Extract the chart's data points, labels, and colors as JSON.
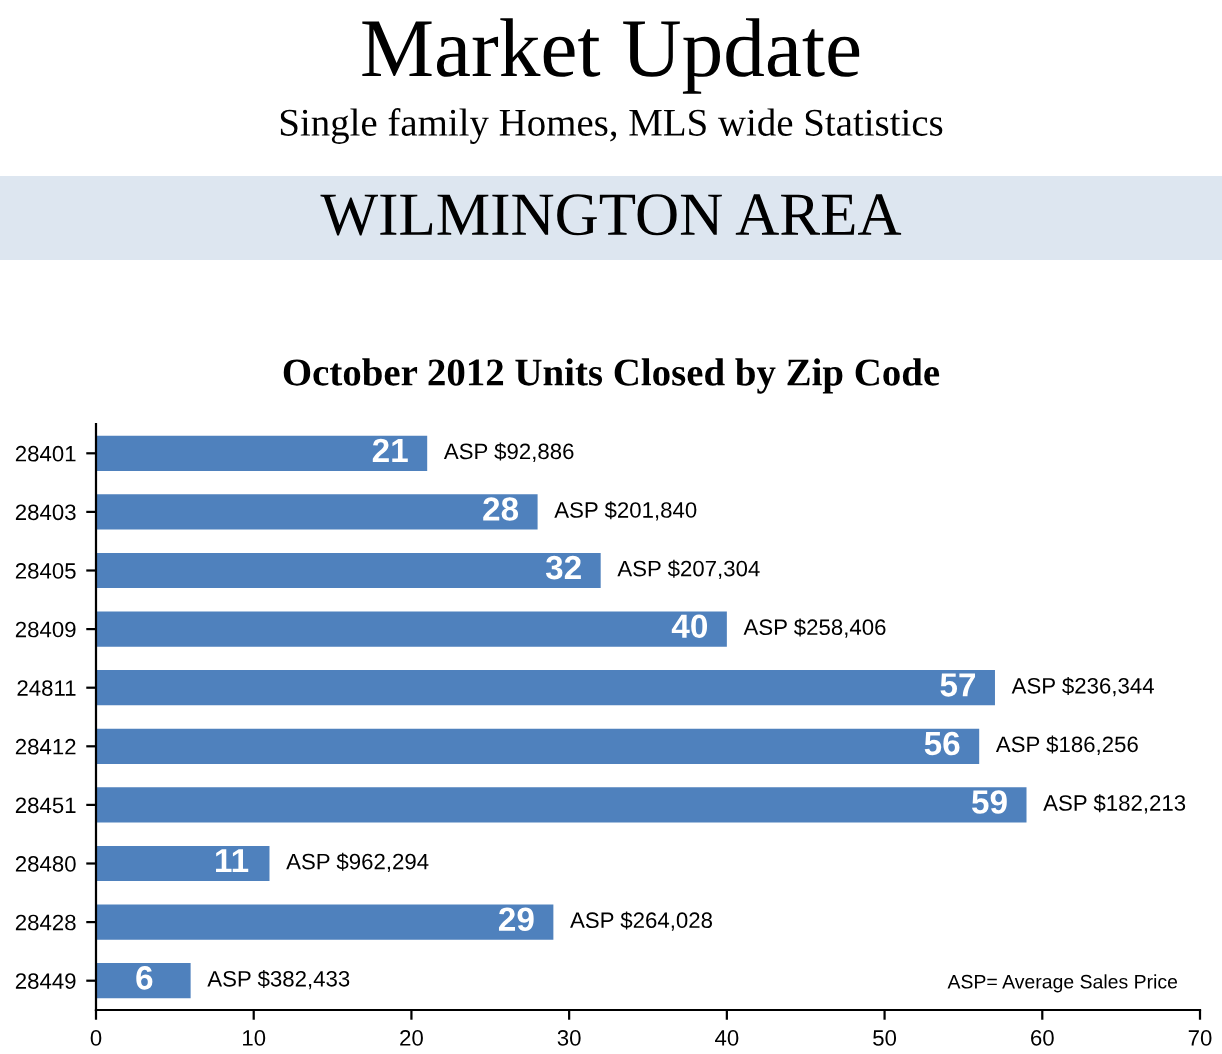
{
  "chart_data": {
    "type": "bar",
    "orientation": "horizontal",
    "title": "October 2012 Units Closed by Zip Code",
    "subtitle": [
      "Market Update",
      "Single family Homes, MLS wide Statistics",
      "WILMINGTON AREA"
    ],
    "categories": [
      "28401",
      "28403",
      "28405",
      "28409",
      "24811",
      "28412",
      "28451",
      "28480",
      "28428",
      "28449"
    ],
    "values": [
      21,
      28,
      32,
      40,
      57,
      56,
      59,
      11,
      29,
      6
    ],
    "color": "#4f81bd",
    "data_labels": true,
    "xlim": [
      0,
      70
    ],
    "xticks": [
      0,
      10,
      20,
      30,
      40,
      50,
      60,
      70
    ],
    "grid": false,
    "annotations": [
      {
        "text": "ASP $92,886",
        "x": 21,
        "y": "28401"
      },
      {
        "text": "ASP $201,840",
        "x": 28,
        "y": "28403"
      },
      {
        "text": "ASP $207,304",
        "x": 32,
        "y": "28405"
      },
      {
        "text": "ASP $258,406",
        "x": 40,
        "y": "28409"
      },
      {
        "text": "ASP $236,344",
        "x": 57,
        "y": "24811"
      },
      {
        "text": "ASP $186,256",
        "x": 56,
        "y": "28412"
      },
      {
        "text": "ASP $182,213",
        "x": 59,
        "y": "28451"
      },
      {
        "text": "ASP $962,294",
        "x": 11,
        "y": "28480"
      },
      {
        "text": "ASP $264,028",
        "x": 29,
        "y": "28428"
      },
      {
        "text": "ASP $382,433",
        "x": 6,
        "y": "28449"
      },
      "ASP= Average Sales Price"
    ]
  }
}
